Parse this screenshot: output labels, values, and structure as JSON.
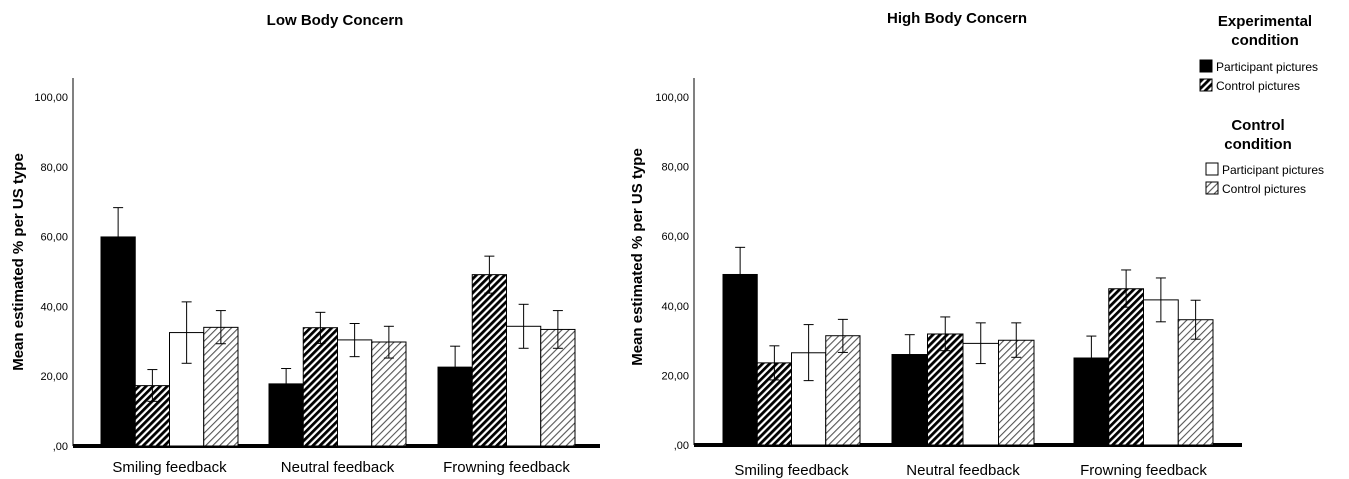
{
  "chart_data": [
    {
      "type": "bar",
      "title": "Low Body Concern",
      "ylabel": "Mean estimated % per US type",
      "xlabel": "",
      "ylim": [
        0,
        100
      ],
      "yticks": [
        "100,00",
        "80,00",
        "60,00",
        "40,00",
        "20,00",
        ",00"
      ],
      "categories": [
        "Smiling feedback",
        "Neutral feedback",
        "Frowning feedback"
      ],
      "series": [
        {
          "name": "Participant pictures",
          "group": "Experimental condition",
          "style": "solid-black",
          "values": [
            59.9,
            17.8,
            22.6
          ],
          "error_low": [
            51.5,
            13.6,
            16.8
          ],
          "error_high": [
            68.3,
            22.2,
            28.6
          ]
        },
        {
          "name": "Control pictures",
          "group": "Experimental condition",
          "style": "dark-hatch",
          "values": [
            17.3,
            33.9,
            49.1
          ],
          "error_low": [
            12.8,
            29.4,
            43.8
          ],
          "error_high": [
            21.9,
            38.3,
            54.4
          ]
        },
        {
          "name": "Participant pictures",
          "group": "Control condition",
          "style": "white",
          "values": [
            32.5,
            30.4,
            34.3
          ],
          "error_low": [
            23.7,
            25.6,
            28.0
          ],
          "error_high": [
            41.3,
            35.1,
            40.6
          ]
        },
        {
          "name": "Control pictures",
          "group": "Control condition",
          "style": "light-hatch",
          "values": [
            34.0,
            29.8,
            33.4
          ],
          "error_low": [
            29.3,
            25.2,
            28.0
          ],
          "error_high": [
            38.8,
            34.3,
            38.8
          ]
        }
      ]
    },
    {
      "type": "bar",
      "title": "High Body Concern",
      "ylabel": "Mean estimated % per US type",
      "xlabel": "",
      "ylim": [
        0,
        100
      ],
      "yticks": [
        "100,00",
        "80,00",
        "60,00",
        "40,00",
        "20,00",
        ",00"
      ],
      "categories": [
        "Smiling feedback",
        "Neutral feedback",
        "Frowning feedback"
      ],
      "series": [
        {
          "name": "Participant pictures",
          "group": "Experimental condition",
          "style": "solid-black",
          "values": [
            49.0,
            26.0,
            25.0
          ],
          "error_low": [
            41.2,
            20.3,
            18.7
          ],
          "error_high": [
            56.8,
            31.7,
            31.3
          ]
        },
        {
          "name": "Control pictures",
          "group": "Experimental condition",
          "style": "dark-hatch",
          "values": [
            23.6,
            31.9,
            44.9
          ],
          "error_low": [
            18.7,
            27.1,
            39.6
          ],
          "error_high": [
            28.5,
            36.8,
            50.3
          ]
        },
        {
          "name": "Participant pictures",
          "group": "Control condition",
          "style": "white",
          "values": [
            26.5,
            29.2,
            41.7
          ],
          "error_low": [
            18.5,
            23.4,
            35.4
          ],
          "error_high": [
            34.6,
            35.1,
            48.0
          ]
        },
        {
          "name": "Control pictures",
          "group": "Control condition",
          "style": "light-hatch",
          "values": [
            31.4,
            30.1,
            36.0
          ],
          "error_low": [
            26.6,
            25.2,
            30.4
          ],
          "error_high": [
            36.1,
            35.1,
            41.6
          ]
        }
      ]
    }
  ],
  "legend": {
    "placement": "top-right",
    "groups": [
      {
        "title_line1": "Experimental",
        "title_line2": "condition",
        "items": [
          {
            "label": "Participant pictures",
            "style": "solid-black"
          },
          {
            "label": "Control pictures",
            "style": "dark-hatch"
          }
        ]
      },
      {
        "title_line1": "Control",
        "title_line2": "condition",
        "items": [
          {
            "label": "Participant pictures",
            "style": "white"
          },
          {
            "label": "Control pictures",
            "style": "light-hatch"
          }
        ]
      }
    ]
  }
}
